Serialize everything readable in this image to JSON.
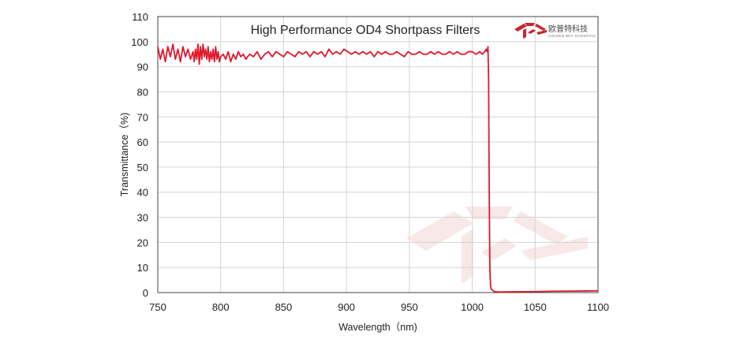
{
  "chart_data": {
    "type": "line",
    "title": "High Performance OD4 Shortpass  Filters",
    "xlabel": "Wavelength（nm)",
    "ylabel": "Transmittance（%)",
    "xlim": [
      750,
      1100
    ],
    "ylim": [
      0,
      110
    ],
    "xticks": [
      750,
      800,
      850,
      900,
      950,
      1000,
      1050,
      1100
    ],
    "yticks": [
      0,
      10,
      20,
      30,
      40,
      50,
      60,
      70,
      80,
      90,
      100,
      110
    ],
    "grid": true,
    "line_color": "#e0182b",
    "series": [
      {
        "x": [
          750,
          752,
          754,
          756,
          758,
          760,
          762,
          764,
          766,
          768,
          770,
          772,
          774,
          776,
          778,
          779,
          780,
          781,
          782,
          783,
          784,
          785,
          786,
          787,
          788,
          789,
          790,
          791,
          792,
          793,
          794,
          795,
          796,
          797,
          798,
          799,
          800,
          802,
          804,
          806,
          808,
          810,
          812,
          814,
          816,
          818,
          820,
          823,
          826,
          829,
          832,
          835,
          838,
          841,
          844,
          847,
          850,
          853,
          856,
          859,
          862,
          865,
          868,
          871,
          874,
          877,
          880,
          883,
          886,
          889,
          892,
          895,
          898,
          901,
          904,
          907,
          910,
          913,
          916,
          919,
          922,
          925,
          928,
          931,
          934,
          937,
          940,
          943,
          946,
          949,
          952,
          955,
          958,
          961,
          964,
          967,
          970,
          973,
          976,
          979,
          982,
          985,
          988,
          991,
          994,
          997,
          1000,
          1003,
          1006,
          1008,
          1010,
          1011,
          1012,
          1012.5,
          1013,
          1013.5,
          1014,
          1014.5,
          1015,
          1016,
          1017,
          1018,
          1020,
          1025,
          1030,
          1040,
          1050,
          1060,
          1070,
          1080,
          1090,
          1100
        ],
        "y": [
          98,
          93,
          97,
          92,
          98,
          94,
          99,
          93,
          97,
          92,
          98,
          94,
          97,
          93,
          96,
          92,
          97,
          93,
          99,
          91,
          98,
          93,
          99,
          94,
          97,
          93,
          98,
          92,
          96,
          93,
          97,
          92,
          98,
          93,
          96,
          92,
          94,
          95,
          93,
          96,
          92,
          95,
          93,
          96,
          94,
          95,
          93,
          95,
          94,
          96,
          93,
          95,
          96,
          94,
          96,
          95,
          94,
          96,
          95,
          94,
          96,
          95,
          96,
          94,
          96,
          95,
          96,
          94,
          97,
          95,
          96,
          95,
          97,
          96,
          95,
          96,
          95,
          96,
          95,
          96,
          94,
          96,
          95,
          96,
          95,
          95,
          96,
          95,
          94,
          96,
          95,
          95,
          96,
          95,
          95,
          96,
          95,
          96,
          95,
          95,
          96,
          95,
          96,
          95,
          95,
          96,
          96,
          95,
          96,
          95,
          96,
          97,
          96,
          98,
          85,
          40,
          10,
          3,
          1.5,
          1,
          0.6,
          0.4,
          0.3,
          0.25,
          0.3,
          0.35,
          0.4,
          0.5,
          0.55,
          0.6,
          0.65,
          0.7
        ]
      }
    ]
  },
  "logo": {
    "name_cn": "欧普特科技",
    "name_en": "GOLDEN WAY SCIENTIFIC",
    "color": "#c6262e"
  }
}
